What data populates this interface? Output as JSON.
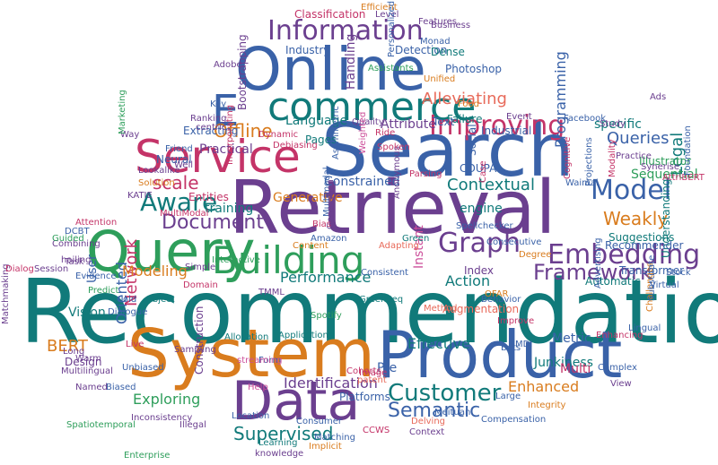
{
  "palette": {
    "teal": "#117a7a",
    "blue": "#3a62a8",
    "purple": "#6b3f8f",
    "magenta": "#c43468",
    "orange": "#d97c1e",
    "green": "#2e9e5b",
    "salmon": "#e86a5a",
    "pink": "#cc4f9a",
    "gray": "#666666"
  },
  "words": [
    {
      "text": "Recommendation",
      "color": "#117a7a",
      "rot": 0
    },
    {
      "text": "Retrieval",
      "color": "#6b3f8f",
      "rot": 0
    },
    {
      "text": "Search",
      "color": "#3a62a8",
      "rot": 0
    },
    {
      "text": "Online",
      "color": "#3a62a8",
      "rot": 0
    },
    {
      "text": "System",
      "color": "#d97c1e",
      "rot": 0
    },
    {
      "text": "Product",
      "color": "#3a62a8",
      "rot": 0
    },
    {
      "text": "Query",
      "color": "#2e9e5b",
      "rot": 0
    },
    {
      "text": "Data",
      "color": "#6b3f8f",
      "rot": 0
    },
    {
      "text": "Service",
      "color": "#c43468",
      "rot": 0
    },
    {
      "text": "commerce",
      "color": "#117a7a",
      "rot": 0
    },
    {
      "text": "E",
      "color": "#3a62a8",
      "rot": 0
    },
    {
      "text": "Building",
      "color": "#2e9e5b",
      "rot": 0
    },
    {
      "text": "Information",
      "color": "#6b3f8f",
      "rot": 0
    },
    {
      "text": "Embedding",
      "color": "#6b3f8f",
      "rot": 0
    },
    {
      "text": "Graph",
      "color": "#6b3f8f",
      "rot": 0
    },
    {
      "text": "Improving",
      "color": "#c43468",
      "rot": 0
    },
    {
      "text": "Model",
      "color": "#3a62a8",
      "rot": 0
    },
    {
      "text": "Customer",
      "color": "#117a7a",
      "rot": 0
    },
    {
      "text": "Aware",
      "color": "#117a7a",
      "rot": 0
    },
    {
      "text": "Framework",
      "color": "#6b3f8f",
      "rot": 0
    },
    {
      "text": "Semantic",
      "color": "#3a62a8",
      "rot": 0
    },
    {
      "text": "Supervised",
      "color": "#117a7a",
      "rot": 0
    },
    {
      "text": "Weakly",
      "color": "#d97c1e",
      "rot": 0
    },
    {
      "text": "Document",
      "color": "#6b3f8f",
      "rot": 0
    },
    {
      "text": "Offline",
      "color": "#d97c1e",
      "rot": 0
    },
    {
      "text": "scale",
      "color": "#c43468",
      "rot": 0
    },
    {
      "text": "Alleviating",
      "color": "#e86a5a",
      "rot": 0
    },
    {
      "text": "Queries",
      "color": "#3a62a8",
      "rot": 0
    },
    {
      "text": "Contextual",
      "color": "#117a7a",
      "rot": 0
    },
    {
      "text": "Network",
      "color": "#c43468",
      "rot": -90
    },
    {
      "text": "Oriented",
      "color": "#3a62a8",
      "rot": -90
    },
    {
      "text": "Effective",
      "color": "#117a7a",
      "rot": 0
    },
    {
      "text": "Enhanced",
      "color": "#d97c1e",
      "rot": 0
    },
    {
      "text": "Exploring",
      "color": "#2e9e5b",
      "rot": 0
    },
    {
      "text": "Identification",
      "color": "#6b3f8f",
      "rot": 0
    },
    {
      "text": "BERT",
      "color": "#d97c1e",
      "rot": 0
    },
    {
      "text": "Modeling",
      "color": "#d97c1e",
      "rot": 0
    },
    {
      "text": "Performance",
      "color": "#117a7a",
      "rot": 0
    },
    {
      "text": "Action",
      "color": "#117a7a",
      "rot": 0
    },
    {
      "text": "Legal",
      "color": "#117a7a",
      "rot": -90
    },
    {
      "text": "Programming",
      "color": "#3a62a8",
      "rot": -90
    },
    {
      "text": "Language",
      "color": "#117a7a",
      "rot": 0
    },
    {
      "text": "Attribute",
      "color": "#6b3f8f",
      "rot": 0
    },
    {
      "text": "engine",
      "color": "#117a7a",
      "rot": 0
    },
    {
      "text": "Junkiness",
      "color": "#117a7a",
      "rot": 0
    },
    {
      "text": "Instant",
      "color": "#cc4f9a",
      "rot": -90
    },
    {
      "text": "Metric",
      "color": "#3a62a8",
      "rot": 0
    },
    {
      "text": "Vision",
      "color": "#117a7a",
      "rot": 0
    },
    {
      "text": "User",
      "color": "#3a62a8",
      "rot": -90
    },
    {
      "text": "Design",
      "color": "#6b3f8f",
      "rot": 0
    },
    {
      "text": "Pre",
      "color": "#3a62a8",
      "rot": 0
    },
    {
      "text": "Multi",
      "color": "#c43468",
      "rot": 0
    },
    {
      "text": "Sequential",
      "color": "#2e9e5b",
      "rot": 0
    },
    {
      "text": "Illustrator",
      "color": "#2e9e5b",
      "rot": 0
    },
    {
      "text": "specific",
      "color": "#117a7a",
      "rot": 0
    },
    {
      "text": "Industrial",
      "color": "#3a62a8",
      "rot": 0
    },
    {
      "text": "Practical",
      "color": "#6b3f8f",
      "rot": 0
    },
    {
      "text": "Neural",
      "color": "#3a62a8",
      "rot": 0
    },
    {
      "text": "training",
      "color": "#117a7a",
      "rot": 0
    },
    {
      "text": "Generative",
      "color": "#d97c1e",
      "rot": 0
    },
    {
      "text": "Constrained",
      "color": "#3a62a8",
      "rot": 0
    },
    {
      "text": "Handling",
      "color": "#6b3f8f",
      "rot": -90
    },
    {
      "text": "Photoshop",
      "color": "#3a62a8",
      "rot": 0
    },
    {
      "text": "Detection",
      "color": "#3a62a8",
      "rot": 0
    },
    {
      "text": "Classification",
      "color": "#c43468",
      "rot": 0
    },
    {
      "text": "Industry",
      "color": "#3a62a8",
      "rot": 0
    },
    {
      "text": "Dense",
      "color": "#117a7a",
      "rot": 0
    },
    {
      "text": "Failure",
      "color": "#117a7a",
      "rot": 0
    },
    {
      "text": "Text",
      "color": "#3a62a8",
      "rot": 0
    },
    {
      "text": "Pages",
      "color": "#117a7a",
      "rot": 0
    },
    {
      "text": "Entities",
      "color": "#c43468",
      "rot": 0
    },
    {
      "text": "Extracting",
      "color": "#3a62a8",
      "rot": 0
    },
    {
      "text": "Bootstrapping",
      "color": "#6b3f8f",
      "rot": -90
    },
    {
      "text": "Social",
      "color": "#3a62a8",
      "rot": -90
    },
    {
      "text": "COUPA",
      "color": "#3a62a8",
      "rot": 0
    },
    {
      "text": "Automatic",
      "color": "#117a7a",
      "rot": 0
    },
    {
      "text": "Suggestions",
      "color": "#117a7a",
      "rot": 0
    },
    {
      "text": "Understanding",
      "color": "#117a7a",
      "rot": -90
    },
    {
      "text": "Transformer",
      "color": "#3a62a8",
      "rot": 0
    },
    {
      "text": "Recommender",
      "color": "#3a62a8",
      "rot": 0
    },
    {
      "text": "Index",
      "color": "#6b3f8f",
      "rot": 0
    },
    {
      "text": "Augmentation",
      "color": "#e86a5a",
      "rot": 0
    },
    {
      "text": "Platforms",
      "color": "#3a62a8",
      "rot": 0
    },
    {
      "text": "Allocation",
      "color": "#117a7a",
      "rot": 0
    },
    {
      "text": "Applications",
      "color": "#117a7a",
      "rot": 0
    },
    {
      "text": "Construction",
      "color": "#6b3f8f",
      "rot": -90
    },
    {
      "text": "Unbiased",
      "color": "#3a62a8",
      "rot": 0
    },
    {
      "text": "Biased",
      "color": "#3a62a8",
      "rot": 0
    },
    {
      "text": "Location",
      "color": "#3a62a8",
      "rot": 0
    },
    {
      "text": "Learning",
      "color": "#117a7a",
      "rot": 0
    },
    {
      "text": "Integrity",
      "color": "#d97c1e",
      "rot": 0
    },
    {
      "text": "Context",
      "color": "#6b3f8f",
      "rot": 0
    },
    {
      "text": "Complex",
      "color": "#3a62a8",
      "rot": 0
    },
    {
      "text": "Lingual",
      "color": "#3a62a8",
      "rot": 0
    },
    {
      "text": "Challenges",
      "color": "#d97c1e",
      "rot": -90
    },
    {
      "text": "Advertising",
      "color": "#3a62a8",
      "rot": -90
    },
    {
      "text": "Substitute",
      "color": "#3a62a8",
      "rot": -90
    },
    {
      "text": "Virtual",
      "color": "#3a62a8",
      "rot": 0
    },
    {
      "text": "Stock",
      "color": "#3a62a8",
      "rot": 0
    },
    {
      "text": "Matchmaking",
      "color": "#6b3f8f",
      "rot": -90
    },
    {
      "text": "Named",
      "color": "#6b3f8f",
      "rot": 0
    },
    {
      "text": "Multilingual",
      "color": "#6b3f8f",
      "rot": 0
    },
    {
      "text": "Warm",
      "color": "#6b3f8f",
      "rot": 0
    },
    {
      "text": "Long",
      "color": "#6b3f8f",
      "rot": 0
    },
    {
      "text": "Combining",
      "color": "#6b3f8f",
      "rot": 0
    },
    {
      "text": "Session",
      "color": "#6b3f8f",
      "rot": 0
    },
    {
      "text": "Dialog",
      "color": "#c43468",
      "rot": 0
    },
    {
      "text": "Task",
      "color": "#6b3f8f",
      "rot": 0
    },
    {
      "text": "Guided",
      "color": "#2e9e5b",
      "rot": 0
    },
    {
      "text": "DCBT",
      "color": "#3a62a8",
      "rot": 0
    },
    {
      "text": "Attention",
      "color": "#c43468",
      "rot": 0
    },
    {
      "text": "Lookalike",
      "color": "#6b3f8f",
      "rot": 0
    },
    {
      "text": "KATIE",
      "color": "#6b3f8f",
      "rot": 0
    },
    {
      "text": "Solution",
      "color": "#d97c1e",
      "rot": 0
    },
    {
      "text": "MultiModal",
      "color": "#c43468",
      "rot": 0
    },
    {
      "text": "Well",
      "color": "#6b3f8f",
      "rot": 0
    },
    {
      "text": "Friend",
      "color": "#3a62a8",
      "rot": 0
    },
    {
      "text": "centric",
      "color": "#6b3f8f",
      "rot": 0
    },
    {
      "text": "Ranking",
      "color": "#6b3f8f",
      "rot": 0
    },
    {
      "text": "Key",
      "color": "#3a62a8",
      "rot": 0
    },
    {
      "text": "Live",
      "color": "#c43468",
      "rot": 0
    },
    {
      "text": "Way",
      "color": "#6b3f8f",
      "rot": 0
    },
    {
      "text": "Marketing",
      "color": "#2e9e5b",
      "rot": -90
    },
    {
      "text": "Adobe",
      "color": "#6b3f8f",
      "rot": 0
    },
    {
      "text": "hailing",
      "color": "#6b3f8f",
      "rot": 0
    },
    {
      "text": "Evidence",
      "color": "#3a62a8",
      "rot": 0
    },
    {
      "text": "Predict",
      "color": "#2e9e5b",
      "rot": 0
    },
    {
      "text": "Dialogue",
      "color": "#3a62a8",
      "rot": 0
    },
    {
      "text": "Cold",
      "color": "#3a62a8",
      "rot": 0
    },
    {
      "text": "Object",
      "color": "#117a7a",
      "rot": 0
    },
    {
      "text": "Domain",
      "color": "#c43468",
      "rot": 0
    },
    {
      "text": "Simple",
      "color": "#6b3f8f",
      "rot": 0
    },
    {
      "text": "Interactive",
      "color": "#2e9e5b",
      "rot": 0
    },
    {
      "text": "TMML",
      "color": "#6b3f8f",
      "rot": 0
    },
    {
      "text": "Content",
      "color": "#d97c1e",
      "rot": 0
    },
    {
      "text": "Bias",
      "color": "#c43468",
      "rot": 0
    },
    {
      "text": "Amazon",
      "color": "#3a62a8",
      "rot": 0
    },
    {
      "text": "Green",
      "color": "#117a7a",
      "rot": 0
    },
    {
      "text": "Adapting",
      "color": "#e86a5a",
      "rot": 0
    },
    {
      "text": "Spellchecker",
      "color": "#3a62a8",
      "rot": 0
    },
    {
      "text": "Consecutive",
      "color": "#3a62a8",
      "rot": 0
    },
    {
      "text": "Degree",
      "color": "#d97c1e",
      "rot": 0
    },
    {
      "text": "OFAR",
      "color": "#d97c1e",
      "rot": 0
    },
    {
      "text": "Behavior",
      "color": "#3a62a8",
      "rot": 0
    },
    {
      "text": "Method",
      "color": "#e86a5a",
      "rot": 0
    },
    {
      "text": "Improve",
      "color": "#c43468",
      "rot": 0
    },
    {
      "text": "Spotify",
      "color": "#2e9e5b",
      "rot": 0
    },
    {
      "text": "GreenSeq",
      "color": "#117a7a",
      "rot": 0
    },
    {
      "text": "Consistent",
      "color": "#3a62a8",
      "rot": 0
    },
    {
      "text": "Bots",
      "color": "#3a62a8",
      "rot": 0
    },
    {
      "text": "MDI",
      "color": "#3a62a8",
      "rot": 0
    },
    {
      "text": "Form",
      "color": "#3a62a8",
      "rot": 0
    },
    {
      "text": "Sampling",
      "color": "#6b3f8f",
      "rot": 0
    },
    {
      "text": "Inconsistency",
      "color": "#6b3f8f",
      "rot": 0
    },
    {
      "text": "streaming",
      "color": "#cc4f9a",
      "rot": 0
    },
    {
      "text": "Help",
      "color": "#cc4f9a",
      "rot": 0
    },
    {
      "text": "Image",
      "color": "#c43468",
      "rot": 0
    },
    {
      "text": "Cohorts",
      "color": "#c43468",
      "rot": 0
    },
    {
      "text": "patent",
      "color": "#e86a5a",
      "rot": 0
    },
    {
      "text": "Large",
      "color": "#3a62a8",
      "rot": 0
    },
    {
      "text": "Meituan",
      "color": "#3a62a8",
      "rot": 0
    },
    {
      "text": "Compensation",
      "color": "#3a62a8",
      "rot": 0
    },
    {
      "text": "Consumer",
      "color": "#3a62a8",
      "rot": 0
    },
    {
      "text": "Delving",
      "color": "#e86a5a",
      "rot": 0
    },
    {
      "text": "CCWS",
      "color": "#c43468",
      "rot": 0
    },
    {
      "text": "Matching",
      "color": "#3a62a8",
      "rot": 0
    },
    {
      "text": "Implicit",
      "color": "#d97c1e",
      "rot": 0
    },
    {
      "text": "knowledge",
      "color": "#6b3f8f",
      "rot": 0
    },
    {
      "text": "Illegal",
      "color": "#6b3f8f",
      "rot": 0
    },
    {
      "text": "Spatiotemporal",
      "color": "#2e9e5b",
      "rot": 0
    },
    {
      "text": "Enterprise",
      "color": "#2e9e5b",
      "rot": 0
    },
    {
      "text": "Efficient",
      "color": "#d97c1e",
      "rot": 0
    },
    {
      "text": "Level",
      "color": "#6b3f8f",
      "rot": 0
    },
    {
      "text": "Features",
      "color": "#6b3f8f",
      "rot": 0
    },
    {
      "text": "Business",
      "color": "#6b3f8f",
      "rot": 0
    },
    {
      "text": "Monad",
      "color": "#3a62a8",
      "rot": 0
    },
    {
      "text": "Personalized",
      "color": "#3a62a8",
      "rot": -90
    },
    {
      "text": "Assistants",
      "color": "#2e9e5b",
      "rot": 0
    },
    {
      "text": "Unified",
      "color": "#d97c1e",
      "rot": 0
    },
    {
      "text": "Quality",
      "color": "#6b3f8f",
      "rot": 0
    },
    {
      "text": "Dynamic",
      "color": "#c43468",
      "rot": 0
    },
    {
      "text": "Debiasing",
      "color": "#c43468",
      "rot": 0
    },
    {
      "text": "Ride",
      "color": "#c43468",
      "rot": 0
    },
    {
      "text": "Spoken",
      "color": "#c43468",
      "rot": 0
    },
    {
      "text": "Asymmetric",
      "color": "#3a62a8",
      "rot": -90
    },
    {
      "text": "Incorporating",
      "color": "#c43468",
      "rot": -90
    },
    {
      "text": "Weighted",
      "color": "#cc4f9a",
      "rot": -90
    },
    {
      "text": "Parsing",
      "color": "#c43468",
      "rot": 0
    },
    {
      "text": "Case",
      "color": "#c43468",
      "rot": -90
    },
    {
      "text": "Anonymous",
      "color": "#6b3f8f",
      "rot": -90
    },
    {
      "text": "Multimodal",
      "color": "#3a62a8",
      "rot": -90
    },
    {
      "text": "Generation",
      "color": "#6b3f8f",
      "rot": -90
    },
    {
      "text": "Waimai",
      "color": "#3a62a8",
      "rot": 0
    },
    {
      "text": "Enhancing",
      "color": "#c43468",
      "rot": 0
    },
    {
      "text": "Study",
      "color": "#6b3f8f",
      "rot": 0
    },
    {
      "text": "Facebook",
      "color": "#3a62a8",
      "rot": 0
    },
    {
      "text": "Practice",
      "color": "#6b3f8f",
      "rot": 0
    },
    {
      "text": "Synerise",
      "color": "#6b3f8f",
      "rot": 0
    },
    {
      "text": "AttriBERT",
      "color": "#c43468",
      "rot": 0
    },
    {
      "text": "Foundation",
      "color": "#3a62a8",
      "rot": -90
    },
    {
      "text": "View",
      "color": "#6b3f8f",
      "rot": 0
    },
    {
      "text": "Event",
      "color": "#6b3f8f",
      "rot": 0
    },
    {
      "text": "Food",
      "color": "#d97c1e",
      "rot": 0
    },
    {
      "text": "Cognitive",
      "color": "#c43468",
      "rot": -90
    },
    {
      "text": "Projections",
      "color": "#3a62a8",
      "rot": -90
    },
    {
      "text": "Modality",
      "color": "#c43468",
      "rot": -90
    },
    {
      "text": "Ads",
      "color": "#6b3f8f",
      "rot": 0
    }
  ]
}
